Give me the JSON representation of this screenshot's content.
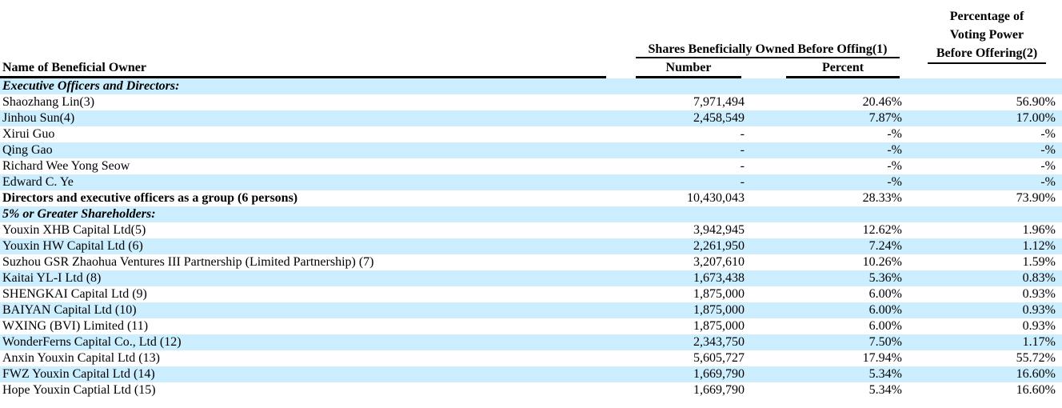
{
  "document": {
    "colors": {
      "row_highlight": "#cceeff",
      "text": "#000000",
      "background": "#ffffff"
    },
    "headers": {
      "name_column": "Name of Beneficial Owner",
      "shares_group": "Shares Beneficially Owned Before Offing(1)",
      "number_column": "Number",
      "percent_column": "Percent",
      "voting_lines": [
        "Percentage of",
        "Voting Power",
        "Before Offering(2)"
      ]
    },
    "rows": [
      {
        "name": "Executive Officers and Directors:",
        "number": "",
        "percent": "",
        "voting": "",
        "style": "section"
      },
      {
        "name": "Shaozhang Lin(3)",
        "number": "7,971,494",
        "percent": "20.46%",
        "voting": "56.90%"
      },
      {
        "name": "Jinhou Sun(4)",
        "number": "2,458,549",
        "percent": "7.87%",
        "voting": "17.00%"
      },
      {
        "name": "Xirui Guo",
        "number": "-",
        "percent": "-%",
        "voting": "-%"
      },
      {
        "name": "Qing Gao",
        "number": "-",
        "percent": "-%",
        "voting": "-%"
      },
      {
        "name": "Richard Wee Yong Seow",
        "number": "-",
        "percent": "-%",
        "voting": "-%"
      },
      {
        "name": "Edward C. Ye",
        "number": "-",
        "percent": "-%",
        "voting": "-%"
      },
      {
        "name": "Directors and executive officers as a group (6 persons)",
        "number": "10,430,043",
        "percent": "28.33%",
        "voting": "73.90%",
        "style": "bold"
      },
      {
        "name": "5% or Greater Shareholders:",
        "number": "",
        "percent": "",
        "voting": "",
        "style": "section"
      },
      {
        "name": "Youxin XHB Capital Ltd(5)",
        "number": "3,942,945",
        "percent": "12.62%",
        "voting": "1.96%"
      },
      {
        "name": "Youxin HW Capital Ltd (6)",
        "number": "2,261,950",
        "percent": "7.24%",
        "voting": "1.12%"
      },
      {
        "name": "Suzhou GSR Zhaohua Ventures III Partnership (Limited Partnership) (7)",
        "number": "3,207,610",
        "percent": "10.26%",
        "voting": "1.59%"
      },
      {
        "name": "Kaitai YL-I Ltd (8)",
        "number": "1,673,438",
        "percent": "5.36%",
        "voting": "0.83%"
      },
      {
        "name": "SHENGKAI Capital Ltd (9)",
        "number": "1,875,000",
        "percent": "6.00%",
        "voting": "0.93%"
      },
      {
        "name": "BAIYAN Capital Ltd (10)",
        "number": "1,875,000",
        "percent": "6.00%",
        "voting": "0.93%"
      },
      {
        "name": "WXING (BVI) Limited (11)",
        "number": "1,875,000",
        "percent": "6.00%",
        "voting": "0.93%"
      },
      {
        "name": "WonderFerns Capital Co., Ltd (12)",
        "number": "2,343,750",
        "percent": "7.50%",
        "voting": "1.17%"
      },
      {
        "name": "Anxin Youxin Capital Ltd (13)",
        "number": "5,605,727",
        "percent": "17.94%",
        "voting": "55.72%"
      },
      {
        "name": "FWZ Youxin Capital Ltd (14)",
        "number": "1,669,790",
        "percent": "5.34%",
        "voting": "16.60%"
      },
      {
        "name": "Hope Youxin Captial Ltd (15)",
        "number": "1,669,790",
        "percent": "5.34%",
        "voting": "16.60%"
      }
    ]
  }
}
